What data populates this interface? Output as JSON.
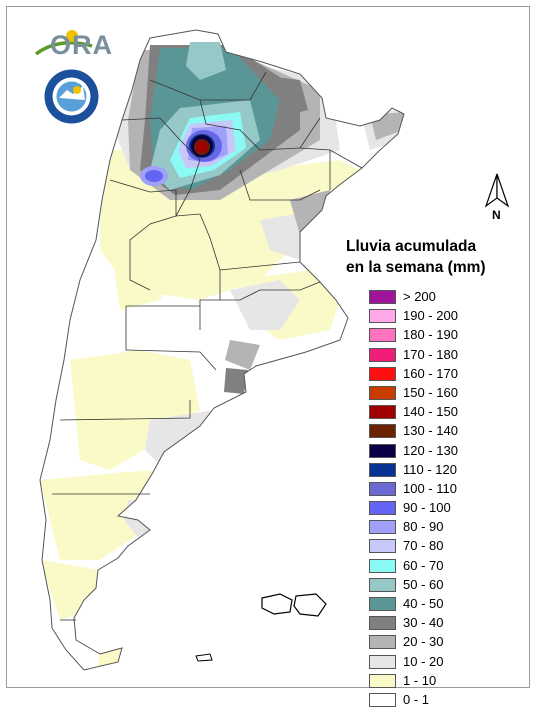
{
  "logo": {
    "text": "ORA",
    "name": "ora-logo"
  },
  "seal": {
    "name": "meteorological-service-seal"
  },
  "north_arrow": {
    "label": "N"
  },
  "legend": {
    "title_line1": "Lluvia acumulada",
    "title_line2": "en la semana (mm)",
    "classes": [
      {
        "label": "> 200",
        "color": "#a0149b"
      },
      {
        "label": "190 - 200",
        "color": "#ffa8ea"
      },
      {
        "label": "180 - 190",
        "color": "#ff72c0"
      },
      {
        "label": "170 - 180",
        "color": "#f01e78"
      },
      {
        "label": "160 - 170",
        "color": "#ff1010"
      },
      {
        "label": "150 - 160",
        "color": "#c83c00"
      },
      {
        "label": "140 - 150",
        "color": "#a00000"
      },
      {
        "label": "130 - 140",
        "color": "#6a2200"
      },
      {
        "label": "120 - 130",
        "color": "#0a0046"
      },
      {
        "label": "110 - 120",
        "color": "#0a3296"
      },
      {
        "label": "100 - 110",
        "color": "#6a6ad2"
      },
      {
        "label": "90 - 100",
        "color": "#6464f5"
      },
      {
        "label": "80 - 90",
        "color": "#a0a0f8"
      },
      {
        "label": "70 - 80",
        "color": "#c8c8f8"
      },
      {
        "label": "60 - 70",
        "color": "#8cfaf4"
      },
      {
        "label": "50 - 60",
        "color": "#96c8c8"
      },
      {
        "label": "40 - 50",
        "color": "#5a9696"
      },
      {
        "label": "30 - 40",
        "color": "#808080"
      },
      {
        "label": "20 - 30",
        "color": "#b4b4b4"
      },
      {
        "label": "10 - 20",
        "color": "#e6e6e6"
      },
      {
        "label": "1 - 10",
        "color": "#fafac8"
      },
      {
        "label": "0 - 1",
        "color": "#ffffff"
      }
    ]
  }
}
